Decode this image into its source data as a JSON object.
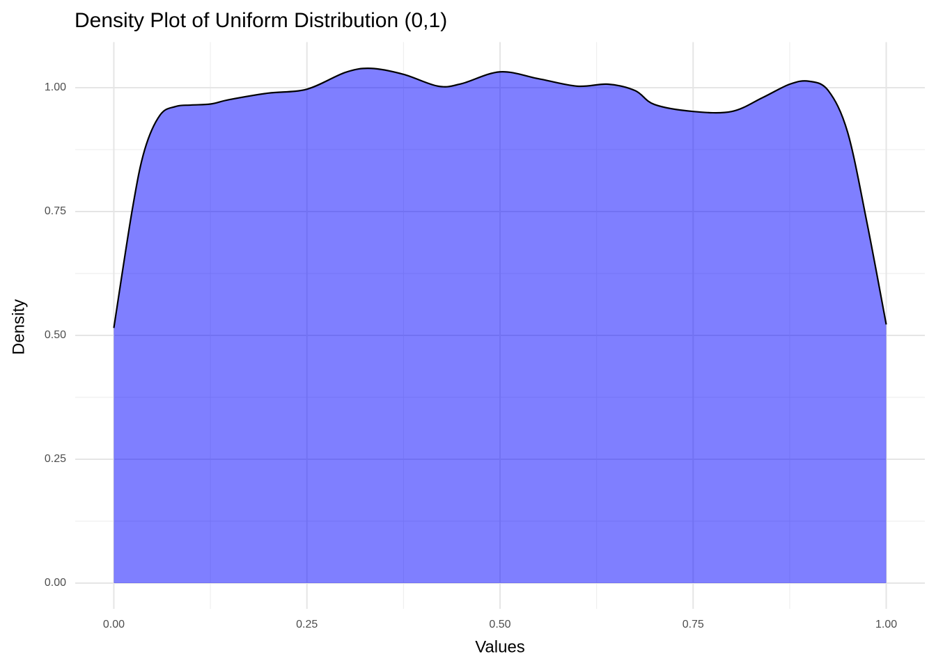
{
  "chart_data": {
    "type": "density",
    "title": "Density Plot of Uniform Distribution (0,1)",
    "x_label": "Values",
    "y_label": "Density",
    "x": [
      0,
      0.024,
      0.04,
      0.06,
      0.08,
      0.1,
      0.125,
      0.15,
      0.2,
      0.25,
      0.3,
      0.333,
      0.375,
      0.42,
      0.45,
      0.5,
      0.55,
      0.6,
      0.64,
      0.675,
      0.7,
      0.75,
      0.8,
      0.84,
      0.875,
      0.9,
      0.925,
      0.95,
      0.975,
      1
    ],
    "values": [
      0.515,
      0.755,
      0.875,
      0.945,
      0.962,
      0.965,
      0.967,
      0.976,
      0.989,
      0.997,
      1.031,
      1.039,
      1.027,
      1.003,
      1.008,
      1.032,
      1.018,
      1.003,
      1.007,
      0.994,
      0.966,
      0.952,
      0.952,
      0.98,
      1.007,
      1.013,
      0.994,
      0.91,
      0.728,
      0.522
    ],
    "fill": "#0000ff",
    "alpha": 0.5,
    "line_color": "#000000",
    "xlim": [
      -0.05,
      1.05
    ],
    "ylim": [
      -0.052,
      1.092
    ],
    "xticks": [
      {
        "value": 0,
        "label": "0.00"
      },
      {
        "value": 0.25,
        "label": "0.25"
      },
      {
        "value": 0.5,
        "label": "0.50"
      },
      {
        "value": 0.75,
        "label": "0.75"
      },
      {
        "value": 1,
        "label": "1.00"
      }
    ],
    "yticks": [
      {
        "value": 0,
        "label": "0.00"
      },
      {
        "value": 0.25,
        "label": "0.25"
      },
      {
        "value": 0.5,
        "label": "0.50"
      },
      {
        "value": 0.75,
        "label": "0.75"
      },
      {
        "value": 1,
        "label": "1.00"
      }
    ],
    "x_minor_grid": [
      0.125,
      0.375,
      0.625,
      0.875
    ],
    "y_minor_grid": [
      0.125,
      0.375,
      0.625,
      0.875
    ],
    "grid": true
  }
}
